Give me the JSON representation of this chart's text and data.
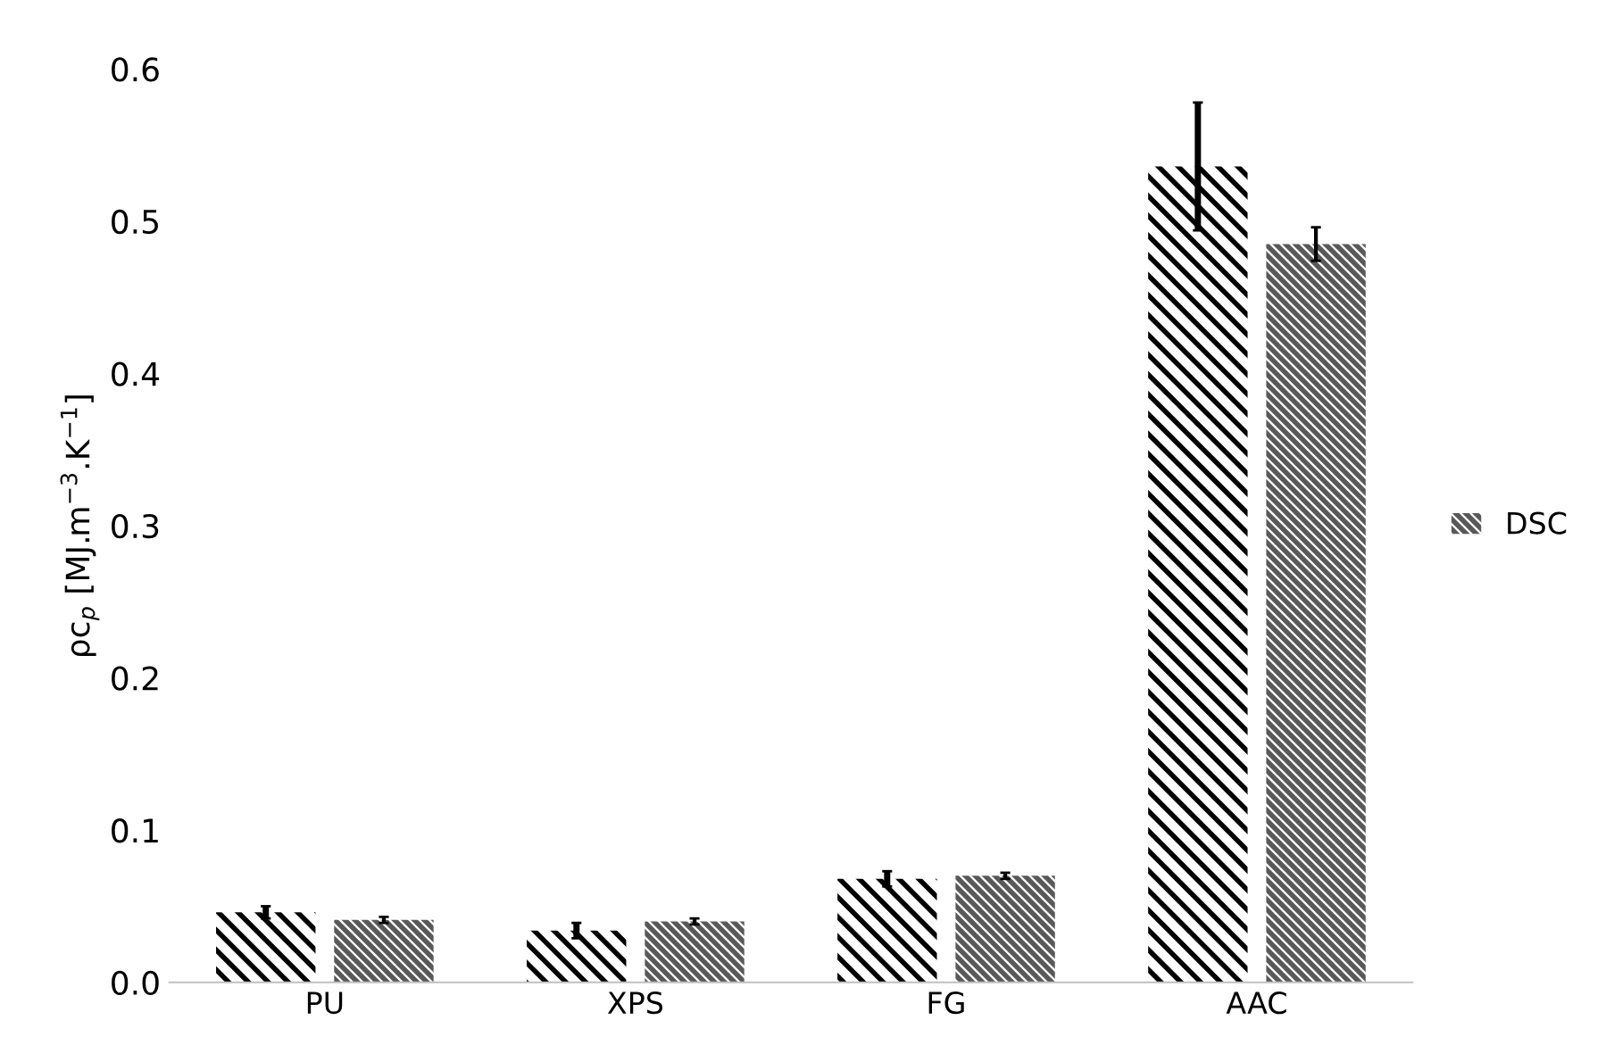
{
  "chart_data": {
    "type": "bar",
    "ylabel": "ρc$_{p}$ [MJ.m$^{−3}$.K$^{−1}$]",
    "categories": [
      "PU",
      "XPS",
      "FG",
      "AAC"
    ],
    "series": [
      {
        "color": "#000000",
        "values": [
          0.046,
          0.034,
          0.068,
          0.536
        ],
        "errors": [
          0.004,
          0.005,
          0.005,
          0.042
        ]
      },
      {
        "name": "DSC",
        "color": "#595959",
        "values": [
          0.041,
          0.04,
          0.07,
          0.485
        ],
        "errors": [
          0.002,
          0.002,
          0.002,
          0.011
        ]
      }
    ],
    "ylim": [
      0,
      0.6
    ],
    "yticks": [
      {
        "value": 0,
        "label": "0.0"
      },
      0.1,
      0.2,
      0.3,
      0.4,
      0.5,
      0.6
    ],
    "grid": false,
    "legend": "right"
  }
}
